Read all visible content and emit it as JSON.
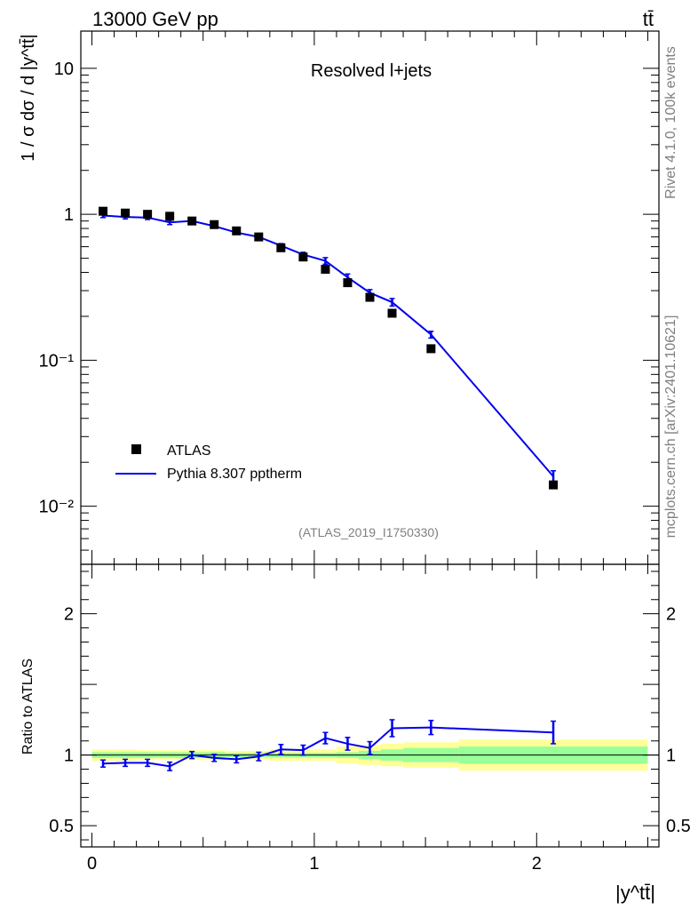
{
  "header": {
    "left": "13000 GeV pp",
    "right": "tt̄"
  },
  "side_labels": {
    "rivet": "Rivet 4.1.0,  100k events",
    "mcplots": "mcplots.cern.ch [arXiv:2401.10621]"
  },
  "analysis_tag": "(ATLAS_2019_I1750330)",
  "colors": {
    "data": "#000000",
    "mc": "#0000ee",
    "band_outer": "#ffff99",
    "band_inner": "#99ff99"
  },
  "chart_data": [
    {
      "type": "scatter",
      "panel": "main",
      "title": "Resolved l+jets",
      "ylabel": "1 / σ dσ / d |y^tt̄|",
      "yscale": "log",
      "ylim": [
        0.004,
        18
      ],
      "yticks": [
        {
          "value": 10,
          "label": "10"
        },
        {
          "value": 1,
          "label": "1"
        },
        {
          "value": 0.1,
          "label": "10⁻¹"
        },
        {
          "value": 0.01,
          "label": "10⁻²"
        }
      ],
      "legend": {
        "placement": "bottom-left",
        "entries": [
          "ATLAS",
          "Pythia 8.307 pptherm"
        ]
      },
      "series": [
        {
          "name": "ATLAS",
          "style": "markers",
          "x": [
            0.05,
            0.15,
            0.25,
            0.35,
            0.45,
            0.55,
            0.65,
            0.75,
            0.85,
            0.95,
            1.05,
            1.15,
            1.25,
            1.35,
            1.525,
            2.075
          ],
          "y": [
            1.05,
            1.02,
            1.0,
            0.97,
            0.9,
            0.85,
            0.77,
            0.7,
            0.59,
            0.51,
            0.42,
            0.34,
            0.27,
            0.21,
            0.12,
            0.014
          ]
        },
        {
          "name": "Pythia 8.307 pptherm",
          "style": "line",
          "x": [
            0.05,
            0.15,
            0.25,
            0.35,
            0.45,
            0.55,
            0.65,
            0.75,
            0.85,
            0.95,
            1.05,
            1.15,
            1.25,
            1.35,
            1.525,
            2.075
          ],
          "y": [
            0.98,
            0.96,
            0.95,
            0.88,
            0.9,
            0.83,
            0.75,
            0.7,
            0.61,
            0.53,
            0.48,
            0.37,
            0.29,
            0.25,
            0.15,
            0.016
          ],
          "yerr": [
            0.03,
            0.03,
            0.03,
            0.03,
            0.03,
            0.025,
            0.02,
            0.02,
            0.02,
            0.02,
            0.025,
            0.02,
            0.015,
            0.015,
            0.008,
            0.0015
          ]
        }
      ]
    },
    {
      "type": "line",
      "panel": "ratio",
      "xlabel": "|y^tt̄|",
      "ylabel": "Ratio to ATLAS",
      "xlim": [
        -0.05,
        2.55
      ],
      "xticks": [
        0,
        1,
        2
      ],
      "ylim": [
        0.35,
        2.35
      ],
      "yticks": [
        {
          "value": 2,
          "label": "2"
        },
        {
          "value": 1,
          "label": "1"
        },
        {
          "value": 0.5,
          "label": "0.5"
        }
      ],
      "bins": {
        "edges": [
          0,
          0.1,
          0.2,
          0.3,
          0.4,
          0.5,
          0.6,
          0.7,
          0.8,
          0.9,
          1.0,
          1.1,
          1.2,
          1.3,
          1.4,
          1.65,
          2.5
        ],
        "inner_halfwidth": [
          0.02,
          0.02,
          0.02,
          0.02,
          0.02,
          0.02,
          0.015,
          0.015,
          0.015,
          0.015,
          0.015,
          0.02,
          0.03,
          0.04,
          0.05,
          0.06
        ],
        "outer_halfwidth": [
          0.04,
          0.04,
          0.035,
          0.035,
          0.035,
          0.035,
          0.03,
          0.03,
          0.04,
          0.04,
          0.04,
          0.06,
          0.07,
          0.08,
          0.09,
          0.11
        ]
      },
      "series": [
        {
          "name": "Pythia 8.307 pptherm / ATLAS",
          "x": [
            0.05,
            0.15,
            0.25,
            0.35,
            0.45,
            0.55,
            0.65,
            0.75,
            0.85,
            0.95,
            1.05,
            1.15,
            1.25,
            1.35,
            1.525,
            2.075
          ],
          "y": [
            0.94,
            0.945,
            0.945,
            0.92,
            1.0,
            0.98,
            0.97,
            0.99,
            1.04,
            1.035,
            1.12,
            1.08,
            1.05,
            1.19,
            1.195,
            1.16
          ],
          "yerr": [
            0.025,
            0.025,
            0.025,
            0.03,
            0.025,
            0.025,
            0.025,
            0.03,
            0.035,
            0.035,
            0.04,
            0.045,
            0.045,
            0.06,
            0.05,
            0.08
          ]
        }
      ]
    }
  ]
}
